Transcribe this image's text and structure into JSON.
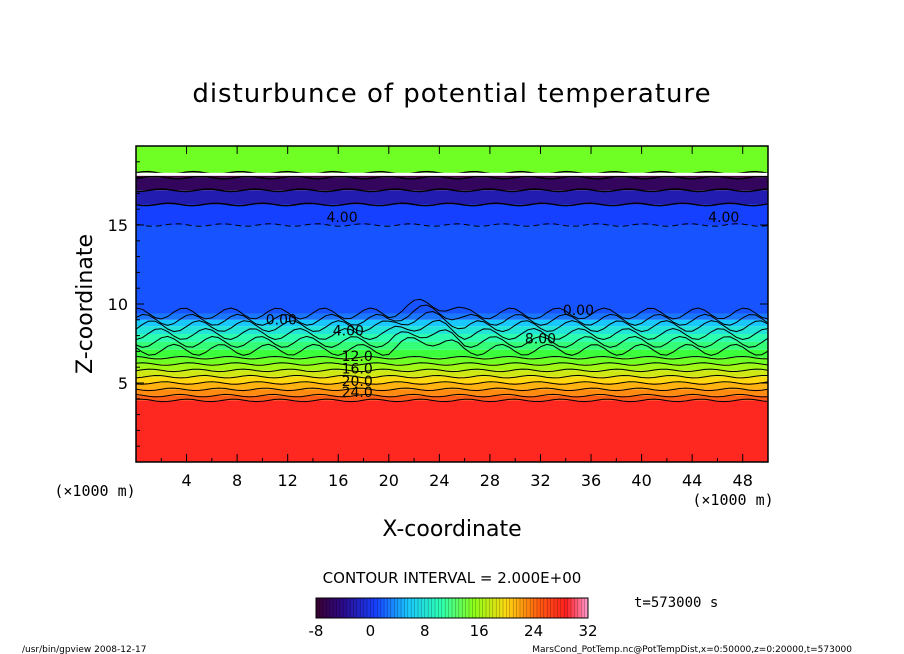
{
  "chart_data": {
    "type": "heatmap",
    "title": "disturbunce of potential temperature",
    "xlabel": "X-coordinate",
    "ylabel": "Z-coordinate",
    "x_unit_left": "(×1000 m)",
    "x_unit_right": "(×1000 m)",
    "xlim": [
      0,
      50
    ],
    "ylim": [
      0,
      20
    ],
    "x_ticks": [
      "4",
      "8",
      "12",
      "16",
      "20",
      "24",
      "28",
      "32",
      "36",
      "40",
      "44",
      "48"
    ],
    "y_ticks": [
      "5",
      "10",
      "15"
    ],
    "contour_interval_text": "CONTOUR INTERVAL = 2.000E+00",
    "colorbar": {
      "min": -8,
      "max": 32,
      "ticks": [
        "-8",
        "0",
        "8",
        "16",
        "24",
        "32"
      ]
    },
    "time_label": "t=573000 s",
    "contour_labels": [
      {
        "text": "4.00",
        "x": 16.3,
        "y": 15.2
      },
      {
        "text": "4.00",
        "x": 46.5,
        "y": 15.2
      },
      {
        "text": "0.00",
        "x": 11.5,
        "y": 8.7
      },
      {
        "text": "0.00",
        "x": 35.0,
        "y": 9.3
      },
      {
        "text": "4.00",
        "x": 16.8,
        "y": 8.0
      },
      {
        "text": "8.00",
        "x": 32.0,
        "y": 7.5
      },
      {
        "text": "12.0",
        "x": 17.5,
        "y": 6.4
      },
      {
        "text": "16.0",
        "x": 17.5,
        "y": 5.6
      },
      {
        "text": "20.0",
        "x": 17.5,
        "y": 4.8
      },
      {
        "text": "24.0",
        "x": 17.5,
        "y": 4.1
      }
    ],
    "bands": [
      {
        "z0": 0.0,
        "z1": 3.9,
        "value": 26
      },
      {
        "z0": 3.9,
        "z1": 4.2,
        "value": 24
      },
      {
        "z0": 4.2,
        "z1": 4.6,
        "value": 22
      },
      {
        "z0": 4.6,
        "z1": 5.0,
        "value": 20
      },
      {
        "z0": 5.0,
        "z1": 5.4,
        "value": 18
      },
      {
        "z0": 5.4,
        "z1": 5.8,
        "value": 16
      },
      {
        "z0": 5.8,
        "z1": 6.2,
        "value": 14
      },
      {
        "z0": 6.2,
        "z1": 6.6,
        "value": 12
      },
      {
        "z0": 6.6,
        "z1": 7.1,
        "value": 10
      },
      {
        "z0": 7.1,
        "z1": 7.6,
        "value": 8
      },
      {
        "z0": 7.6,
        "z1": 8.1,
        "value": 6
      },
      {
        "z0": 8.1,
        "z1": 8.6,
        "value": 4
      },
      {
        "z0": 8.6,
        "z1": 9.0,
        "value": 2
      },
      {
        "z0": 9.0,
        "z1": 9.4,
        "value": 0
      },
      {
        "z0": 9.4,
        "z1": 15.0,
        "value": -2
      },
      {
        "z0": 15.0,
        "z1": 16.3,
        "value": -3
      },
      {
        "z0": 16.3,
        "z1": 17.2,
        "value": -5
      },
      {
        "z0": 17.2,
        "z1": 18.0,
        "value": -7
      },
      {
        "z0": 18.0,
        "z1": 18.3,
        "value": -8
      },
      {
        "z0": 18.3,
        "z1": 20.0,
        "value": 12
      }
    ]
  },
  "footer": {
    "left": "/usr/bin/gpview  2008-12-17",
    "right": "MarsCond_PotTemp.nc@PotTempDist,x=0:50000,z=0:20000,t=573000"
  }
}
